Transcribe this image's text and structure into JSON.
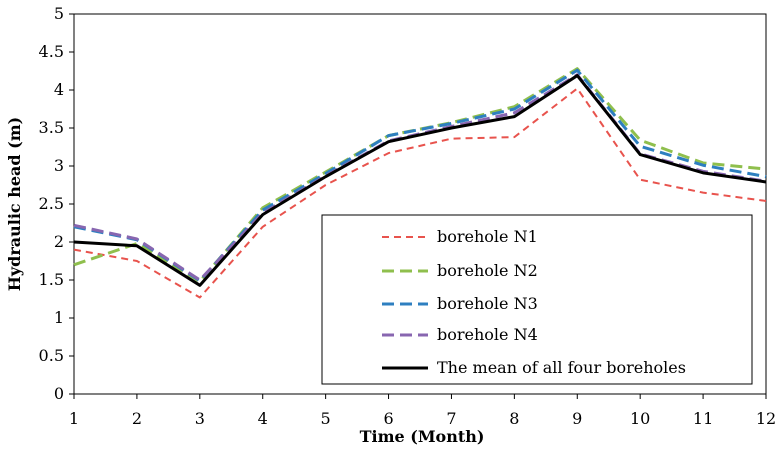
{
  "chart_data": {
    "type": "line",
    "title": "",
    "xlabel": "Time (Month)",
    "ylabel": "Hydraulic head (m)",
    "x": [
      1,
      2,
      3,
      4,
      5,
      6,
      7,
      8,
      9,
      10,
      11,
      12
    ],
    "xlim": [
      1,
      12
    ],
    "ylim": [
      0,
      5
    ],
    "yticks": [
      "0",
      "0.5",
      "1",
      "1.5",
      "2",
      "2.5",
      "3",
      "3.5",
      "4",
      "4.5",
      "5"
    ],
    "xticks": [
      "1",
      "2",
      "3",
      "4",
      "5",
      "6",
      "7",
      "8",
      "9",
      "10",
      "11",
      "12"
    ],
    "grid": false,
    "legend_position": "bottom-right",
    "series": [
      {
        "name": "borehole N1",
        "color": "#e8534d",
        "style": "dashed",
        "values": [
          1.9,
          1.75,
          1.27,
          2.2,
          2.75,
          3.17,
          3.36,
          3.38,
          4.02,
          2.82,
          2.65,
          2.54
        ]
      },
      {
        "name": "borehole N2",
        "color": "#8fbf4d",
        "style": "dashed",
        "values": [
          1.7,
          1.98,
          1.48,
          2.45,
          2.92,
          3.4,
          3.57,
          3.78,
          4.28,
          3.34,
          3.04,
          2.96
        ]
      },
      {
        "name": "borehole N3",
        "color": "#2e7fc0",
        "style": "dashed",
        "values": [
          2.2,
          2.03,
          1.49,
          2.42,
          2.9,
          3.4,
          3.56,
          3.75,
          4.26,
          3.26,
          3.01,
          2.86
        ]
      },
      {
        "name": "borehole N4",
        "color": "#8866b0",
        "style": "dashed",
        "values": [
          2.22,
          2.04,
          1.5,
          2.38,
          2.87,
          3.33,
          3.52,
          3.7,
          4.2,
          3.16,
          2.93,
          2.8
        ]
      },
      {
        "name": "The mean of all four boreholes",
        "color": "#000000",
        "style": "solid",
        "values": [
          2.0,
          1.95,
          1.43,
          2.36,
          2.86,
          3.32,
          3.5,
          3.65,
          4.19,
          3.15,
          2.91,
          2.79
        ]
      }
    ]
  }
}
